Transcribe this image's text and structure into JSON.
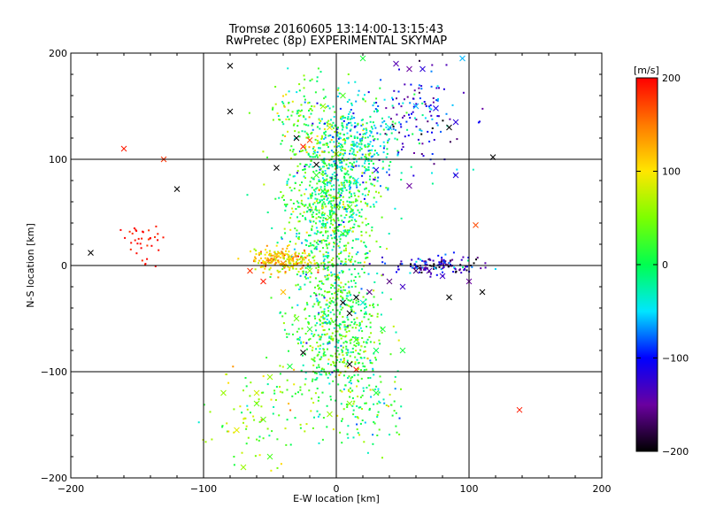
{
  "chart_data": {
    "type": "scatter",
    "title": "Tromsø 20160605 13:14:00-13:15:43",
    "subtitle": "RwPretec (8p) EXPERIMENTAL SKYMAP",
    "xlabel": "E-W location [km]",
    "ylabel": "N-S location [km]",
    "xlim": [
      -200,
      200
    ],
    "ylim": [
      -200,
      200
    ],
    "x_ticks": [
      "−200",
      "−100",
      "0",
      "100",
      "200"
    ],
    "y_ticks": [
      "−200",
      "−100",
      "0",
      "100",
      "200"
    ],
    "grid": true,
    "colorbar": {
      "label": "[m/s]",
      "range": [
        -200,
        200
      ],
      "ticks": [
        "200",
        "100",
        "0",
        "−100",
        "−200"
      ],
      "colormap": "rainbow (black-blue-cyan-green-yellow-red)"
    },
    "series": [
      {
        "marker": "x",
        "points": [
          [
            -160,
            110,
            190
          ],
          [
            -130,
            100,
            180
          ],
          [
            -120,
            72,
            -200
          ],
          [
            -185,
            12,
            -200
          ],
          [
            -80,
            188,
            -200
          ],
          [
            -80,
            145,
            -200
          ],
          [
            -30,
            120,
            -200
          ],
          [
            -25,
            112,
            190
          ],
          [
            -20,
            118,
            170
          ],
          [
            -15,
            95,
            -200
          ],
          [
            -45,
            92,
            -200
          ],
          [
            -10,
            150,
            60
          ],
          [
            -5,
            130,
            90
          ],
          [
            0,
            105,
            60
          ],
          [
            5,
            160,
            30
          ],
          [
            20,
            195,
            10
          ],
          [
            45,
            190,
            -140
          ],
          [
            55,
            185,
            -150
          ],
          [
            65,
            185,
            -120
          ],
          [
            95,
            195,
            -60
          ],
          [
            75,
            148,
            -110
          ],
          [
            60,
            150,
            -60
          ],
          [
            40,
            130,
            -40
          ],
          [
            90,
            135,
            -120
          ],
          [
            85,
            130,
            -200
          ],
          [
            118,
            102,
            -200
          ],
          [
            90,
            85,
            -120
          ],
          [
            30,
            90,
            -120
          ],
          [
            55,
            75,
            -150
          ],
          [
            15,
            80,
            -50
          ],
          [
            105,
            38,
            170
          ],
          [
            70,
            -5,
            -140
          ],
          [
            80,
            -10,
            -130
          ],
          [
            60,
            -5,
            -170
          ],
          [
            100,
            -15,
            -150
          ],
          [
            110,
            -25,
            -200
          ],
          [
            85,
            -30,
            -200
          ],
          [
            25,
            -25,
            -160
          ],
          [
            15,
            -30,
            -200
          ],
          [
            5,
            -35,
            -200
          ],
          [
            10,
            -45,
            -200
          ],
          [
            -55,
            -15,
            190
          ],
          [
            -65,
            -5,
            180
          ],
          [
            -40,
            -25,
            120
          ],
          [
            -30,
            -50,
            40
          ],
          [
            -20,
            -60,
            20
          ],
          [
            -25,
            -82,
            -200
          ],
          [
            -35,
            -95,
            10
          ],
          [
            10,
            -93,
            -200
          ],
          [
            15,
            -98,
            190
          ],
          [
            -50,
            -105,
            60
          ],
          [
            -60,
            -120,
            80
          ],
          [
            -85,
            -120,
            60
          ],
          [
            -75,
            -155,
            90
          ],
          [
            -60,
            -130,
            40
          ],
          [
            -55,
            -145,
            40
          ],
          [
            -70,
            -190,
            60
          ],
          [
            -50,
            -180,
            30
          ],
          [
            -5,
            -140,
            60
          ],
          [
            10,
            -130,
            50
          ],
          [
            30,
            -120,
            10
          ],
          [
            138,
            -136,
            190
          ],
          [
            -50,
            5,
            140
          ],
          [
            -45,
            10,
            120
          ],
          [
            -40,
            2,
            150
          ],
          [
            -35,
            8,
            100
          ],
          [
            -20,
            -5,
            60
          ],
          [
            20,
            -35,
            -40
          ],
          [
            35,
            -60,
            10
          ],
          [
            30,
            -80,
            0
          ],
          [
            15,
            -70,
            20
          ],
          [
            50,
            -80,
            10
          ],
          [
            40,
            -15,
            -160
          ],
          [
            50,
            -20,
            -130
          ],
          [
            -5,
            45,
            40
          ],
          [
            5,
            30,
            20
          ],
          [
            10,
            55,
            30
          ],
          [
            -10,
            70,
            10
          ],
          [
            -15,
            85,
            20
          ]
        ]
      },
      {
        "marker": "dot",
        "clusters": [
          {
            "center": [
              -5,
              60
            ],
            "spread": [
              30,
              75
            ],
            "count": 900,
            "v_mean": 5,
            "v_spread": 45
          },
          {
            "center": [
              0,
              -60
            ],
            "spread": [
              30,
              70
            ],
            "count": 650,
            "v_mean": 15,
            "v_spread": 40
          },
          {
            "center": [
              -40,
              5
            ],
            "spread": [
              20,
              10
            ],
            "count": 200,
            "v_mean": 110,
            "v_spread": 35
          },
          {
            "center": [
              20,
              115
            ],
            "spread": [
              30,
              40
            ],
            "count": 300,
            "v_mean": -35,
            "v_spread": 40
          },
          {
            "center": [
              75,
              0
            ],
            "spread": [
              30,
              8
            ],
            "count": 140,
            "v_mean": -140,
            "v_spread": 50
          },
          {
            "center": [
              65,
              140
            ],
            "spread": [
              30,
              40
            ],
            "count": 120,
            "v_mean": -110,
            "v_spread": 50
          },
          {
            "center": [
              -145,
              20
            ],
            "spread": [
              15,
              18
            ],
            "count": 35,
            "v_mean": 190,
            "v_spread": 10
          },
          {
            "center": [
              -60,
              -140
            ],
            "spread": [
              35,
              40
            ],
            "count": 90,
            "v_mean": 50,
            "v_spread": 40
          },
          {
            "center": [
              25,
              -130
            ],
            "spread": [
              25,
              40
            ],
            "count": 90,
            "v_mean": 20,
            "v_spread": 40
          },
          {
            "center": [
              -25,
              140
            ],
            "spread": [
              25,
              35
            ],
            "count": 110,
            "v_mean": 40,
            "v_spread": 45
          }
        ]
      }
    ]
  }
}
